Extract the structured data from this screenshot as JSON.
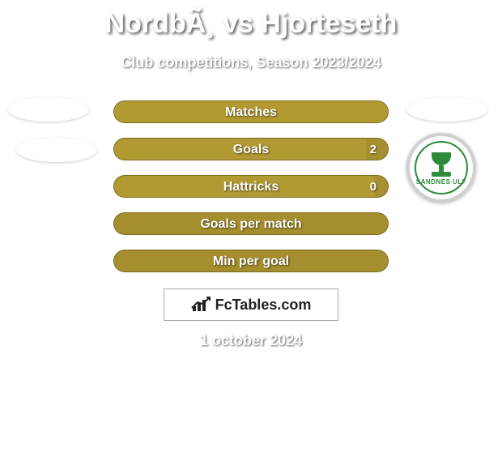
{
  "title": "NordbÃ¸ vs Hjorteseth",
  "subtitle": "Club competitions, Season 2023/2024",
  "date": "1 october 2024",
  "fctables_label": "FcTables.com",
  "club_logo_text": "SANDNES ULF",
  "colors": {
    "bar_base": "#a7902f",
    "bar_fill": "#b29a33",
    "bar_alt": "#a58e2e"
  },
  "bars": [
    {
      "label": "Matches",
      "left_fill_pct": 100,
      "right_value": "",
      "base_color": "#a7902f",
      "fill_color": "#b29a33"
    },
    {
      "label": "Goals",
      "left_fill_pct": 92,
      "right_value": "2",
      "base_color": "#a7902f",
      "fill_color": "#b29a33"
    },
    {
      "label": "Hattricks",
      "left_fill_pct": 95,
      "right_value": "0",
      "base_color": "#a7902f",
      "fill_color": "#b29a33"
    },
    {
      "label": "Goals per match",
      "left_fill_pct": 100,
      "right_value": "",
      "base_color": "#a58e2e",
      "fill_color": "#a58e2e"
    },
    {
      "label": "Min per goal",
      "left_fill_pct": 100,
      "right_value": "",
      "base_color": "#a58e2e",
      "fill_color": "#a58e2e"
    }
  ]
}
